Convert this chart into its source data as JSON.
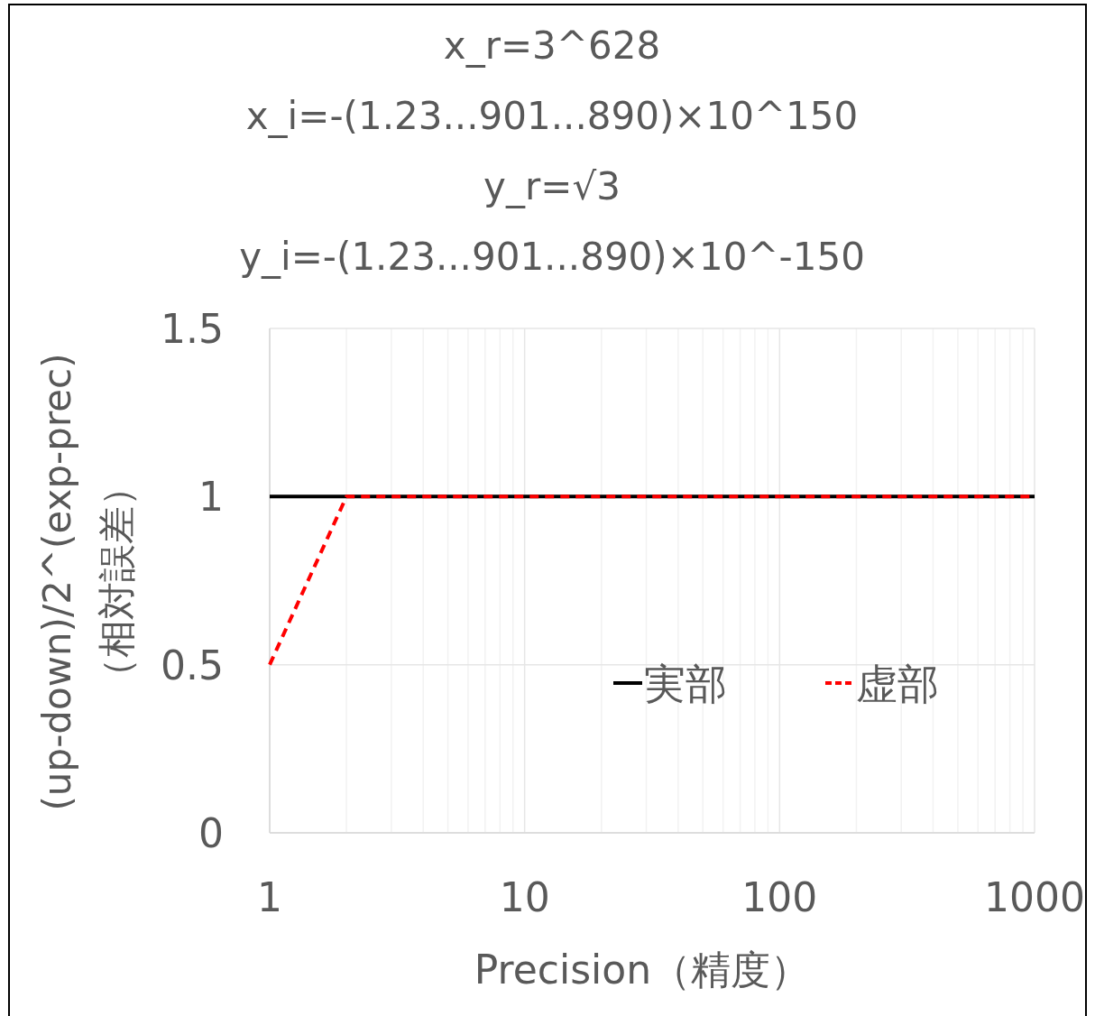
{
  "chart_data": {
    "type": "line",
    "title": "x_r=3^628\nx_i=-(1.23...901...890)×10^150\ny_r=√3\ny_i=-(1.23...901...890)×10^-150",
    "xlabel": "Precision（精度）",
    "ylabel": "(up-down)/2^(exp-prec)\n（相対誤差）",
    "log": "x",
    "xlim": [
      1,
      1000
    ],
    "xticks": [
      1,
      10,
      100,
      1000
    ],
    "ylim": [
      0,
      1.5
    ],
    "yticks": [
      0,
      0.5,
      1,
      1.5
    ],
    "grid": true,
    "legend": "right",
    "marker": "none",
    "series": [
      {
        "name": "実部",
        "color": "#000000",
        "line_style": "solid",
        "x": [
          1,
          2,
          1000
        ],
        "values": [
          1,
          1,
          1
        ]
      },
      {
        "name": "虚部",
        "color": "#ff0000",
        "line_style": "dashed",
        "x": [
          1,
          2,
          1000
        ],
        "values": [
          0.5,
          1,
          1
        ]
      }
    ]
  }
}
